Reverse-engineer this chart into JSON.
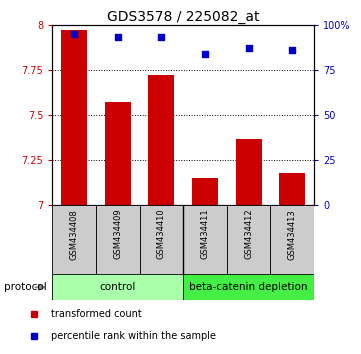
{
  "title": "GDS3578 / 225082_at",
  "categories": [
    "GSM434408",
    "GSM434409",
    "GSM434410",
    "GSM434411",
    "GSM434412",
    "GSM434413"
  ],
  "red_values": [
    7.97,
    7.57,
    7.72,
    7.15,
    7.37,
    7.18
  ],
  "blue_values": [
    95,
    93,
    93,
    84,
    87,
    86
  ],
  "ylim_left": [
    7.0,
    8.0
  ],
  "ylim_right": [
    0,
    100
  ],
  "yticks_left": [
    7.0,
    7.25,
    7.5,
    7.75,
    8.0
  ],
  "ytick_labels_left": [
    "7",
    "7.25",
    "7.5",
    "7.75",
    "8"
  ],
  "yticks_right": [
    0,
    25,
    50,
    75,
    100
  ],
  "ytick_labels_right": [
    "0",
    "25",
    "50",
    "75",
    "100%"
  ],
  "grid_lines": [
    7.25,
    7.5,
    7.75
  ],
  "control_label": "control",
  "depletion_label": "beta-catenin depletion",
  "protocol_label": "protocol",
  "legend_red": "transformed count",
  "legend_blue": "percentile rank within the sample",
  "bar_color": "#cc0000",
  "dot_color": "#0000cc",
  "control_bg": "#aaffaa",
  "depletion_bg": "#44ee44",
  "xticklabel_bg": "#cccccc",
  "bar_width": 0.6,
  "title_fontsize": 10,
  "tick_fontsize": 7,
  "label_fontsize": 7.5
}
